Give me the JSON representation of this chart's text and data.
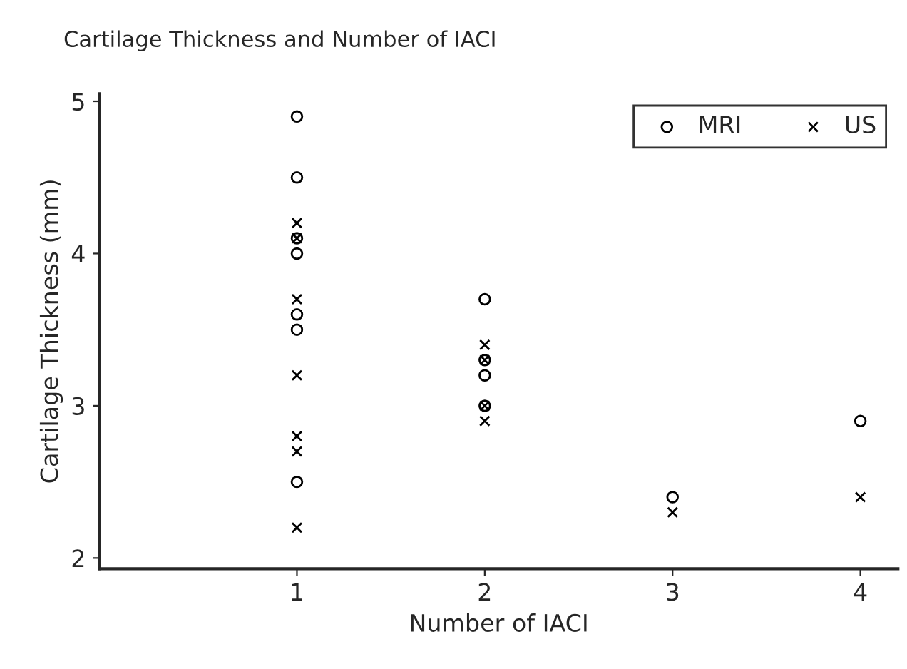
{
  "chart_data": {
    "type": "scatter",
    "title": "Cartilage Thickness and Number of IACI",
    "xlabel": "Number of IACI",
    "ylabel": "Cartilage Thickness (mm)",
    "xlim": [
      -0.05,
      4.2
    ],
    "ylim": [
      1.93,
      5.05
    ],
    "xticks": [
      1,
      2,
      3,
      4
    ],
    "yticks": [
      2,
      3,
      4,
      5
    ],
    "grid": false,
    "legend": "top right",
    "series": [
      {
        "name": "MRI",
        "color": "#000000",
        "marker": "circle",
        "x": [
          1,
          1,
          1,
          1,
          1,
          1,
          1,
          2,
          2,
          2,
          2,
          3,
          4
        ],
        "values": [
          4.9,
          4.5,
          4.1,
          4.0,
          3.6,
          3.5,
          2.5,
          3.7,
          3.3,
          3.2,
          3.0,
          2.4,
          2.9
        ]
      },
      {
        "name": "US",
        "color": "#000000",
        "marker": "cross",
        "x": [
          1,
          1,
          1,
          1,
          1,
          1,
          1,
          2,
          2,
          2,
          2,
          3,
          4
        ],
        "values": [
          4.2,
          4.1,
          3.7,
          3.2,
          2.8,
          2.7,
          2.2,
          3.4,
          3.3,
          3.0,
          2.9,
          2.3,
          2.4
        ]
      }
    ]
  }
}
